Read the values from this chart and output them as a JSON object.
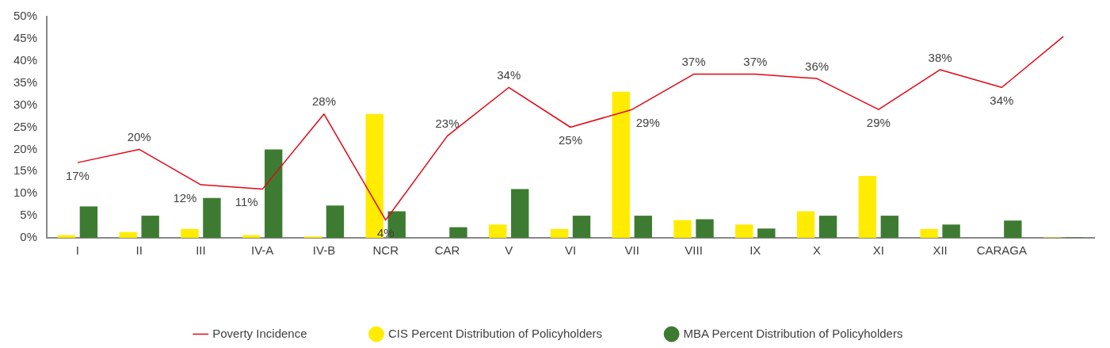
{
  "chart_data": {
    "type": "bar",
    "categories": [
      "I",
      "II",
      "III",
      "IV-A",
      "IV-B",
      "NCR",
      "CAR",
      "V",
      "VI",
      "VII",
      "VIII",
      "IX",
      "X",
      "XI",
      "XII",
      "CARAGA",
      null
    ],
    "series": [
      {
        "name": "CIS Percent Distribution of Policyholders",
        "color": "#ffec00",
        "values": [
          0.6,
          1.3,
          2,
          0.6,
          0.3,
          28,
          0,
          3,
          2,
          33,
          4,
          3,
          6,
          14,
          2,
          0,
          0.1
        ]
      },
      {
        "name": "MBA Percent Distribution of Policyholders",
        "color": "#3e7b32",
        "values": [
          7.1,
          5,
          9,
          20,
          7.3,
          6,
          2.4,
          11,
          5,
          5,
          4.2,
          2.1,
          5,
          5,
          3,
          3.9,
          0.1
        ]
      },
      {
        "name": "Poverty Incidence",
        "type": "line",
        "color": "#e30613",
        "marker": "none",
        "line_style": "solid",
        "values": [
          17,
          20,
          12,
          11,
          28,
          4,
          23,
          34,
          25,
          29,
          37,
          37,
          36,
          29,
          38,
          34,
          45.5
        ],
        "value_labels": [
          "17%",
          "20%",
          "12%",
          "11%",
          "28%",
          "4%",
          "23%",
          "34%",
          "25%",
          "29%",
          "37%",
          "37%",
          "36%",
          "29%",
          "38%",
          "34%",
          null
        ]
      }
    ],
    "ylim": [
      0,
      50
    ],
    "yticks": [
      {
        "value": 0,
        "label": "0%"
      },
      {
        "value": 5,
        "label": "5%"
      },
      {
        "value": 10,
        "label": "10%"
      },
      {
        "value": 15,
        "label": "15%"
      },
      {
        "value": 20,
        "label": "20%"
      },
      {
        "value": 25,
        "label": "25%"
      },
      {
        "value": 30,
        "label": "30%"
      },
      {
        "value": 35,
        "label": "35%"
      },
      {
        "value": 40,
        "label": "40%"
      },
      {
        "value": 45,
        "label": "45%"
      },
      {
        "value": 50,
        "label": "50%"
      }
    ],
    "grid": false,
    "legend": "bottom"
  }
}
